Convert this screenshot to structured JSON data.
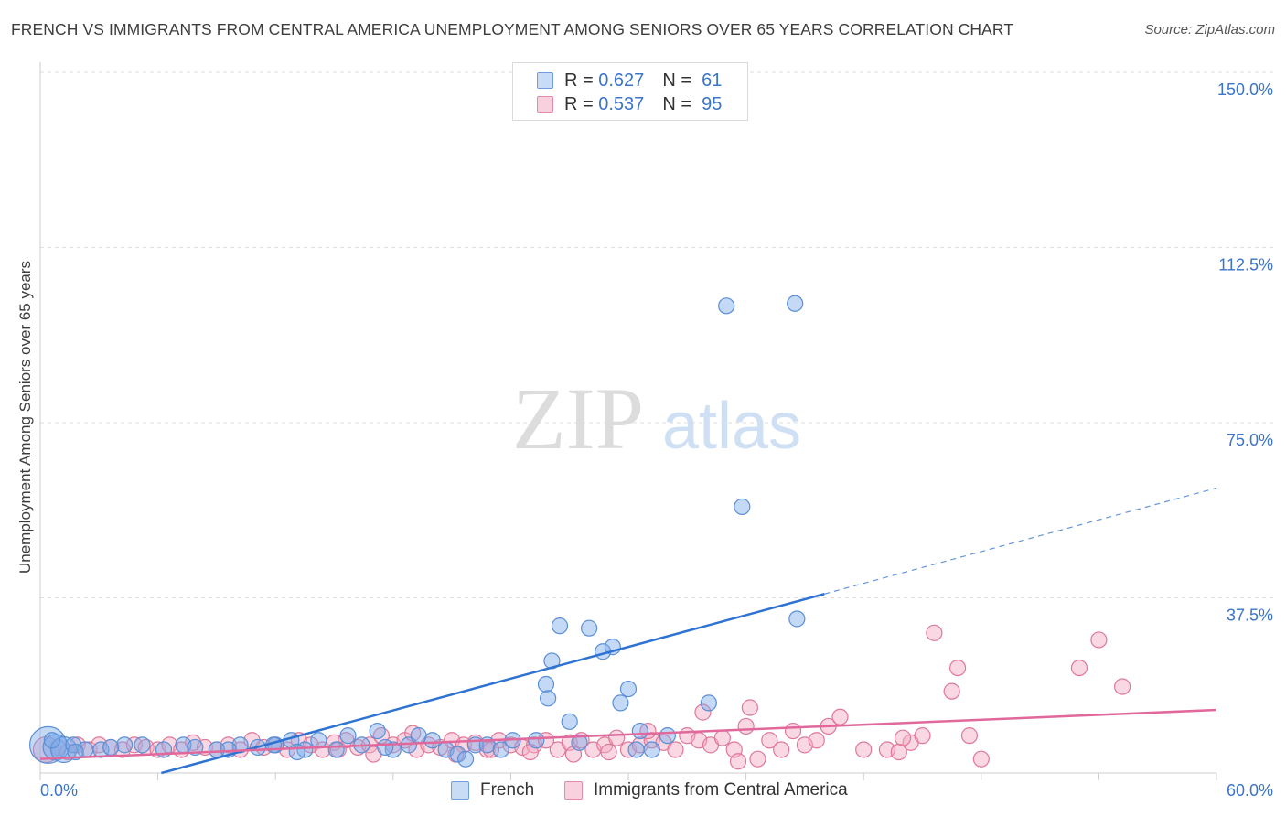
{
  "title": "FRENCH VS IMMIGRANTS FROM CENTRAL AMERICA UNEMPLOYMENT AMONG SENIORS OVER 65 YEARS CORRELATION CHART",
  "source": "Source: ZipAtlas.com",
  "watermark": {
    "zip": "ZIP",
    "atlas": "atlas"
  },
  "legend": {
    "r_label": "R =",
    "n_label": "N =",
    "rows": [
      {
        "r": "0.627",
        "n": "61",
        "color": "#a9c8f2",
        "border": "#5b8fd6"
      },
      {
        "r": "0.537",
        "n": "95",
        "color": "#f7bfd0",
        "border": "#e07898"
      }
    ]
  },
  "chart_data": {
    "type": "scatter",
    "title": "FRENCH VS IMMIGRANTS FROM CENTRAL AMERICA UNEMPLOYMENT AMONG SENIORS OVER 65 YEARS CORRELATION CHART",
    "xlabel": "",
    "ylabel": "Unemployment Among Seniors over 65 years",
    "xlim": [
      0,
      60
    ],
    "ylim": [
      0,
      150
    ],
    "x_tick_labels": [
      "0.0%",
      "60.0%"
    ],
    "y_ticks": [
      37.5,
      75,
      112.5,
      150
    ],
    "y_tick_labels": [
      "37.5%",
      "75.0%",
      "112.5%",
      "150.0%"
    ],
    "grid": "horizontal dashed",
    "legend_position": "top-center",
    "series": [
      {
        "name": "French",
        "color": "#7aaae8",
        "stroke": "#5b8fd6",
        "trend": {
          "x0": 0,
          "y0": -7,
          "x1": 60,
          "y1": 61,
          "solid_until": 40
        },
        "points": [
          [
            0.4,
            6,
            3
          ],
          [
            0.8,
            5.5,
            2
          ],
          [
            1.2,
            5,
            2
          ],
          [
            1.7,
            6,
            1
          ],
          [
            2.3,
            5,
            1
          ],
          [
            3.1,
            5,
            1
          ],
          [
            4.3,
            6,
            1
          ],
          [
            5.2,
            6,
            1
          ],
          [
            6.3,
            5,
            1
          ],
          [
            7.3,
            6,
            1
          ],
          [
            7.9,
            5.5,
            1
          ],
          [
            9.0,
            5,
            1
          ],
          [
            10.2,
            6,
            1
          ],
          [
            11.1,
            5.5,
            1
          ],
          [
            12.0,
            6,
            1
          ],
          [
            12.8,
            7,
            1
          ],
          [
            13.5,
            5,
            1
          ],
          [
            14.2,
            7,
            1
          ],
          [
            15.1,
            5,
            1
          ],
          [
            15.7,
            8,
            1
          ],
          [
            16.4,
            6,
            1
          ],
          [
            17.2,
            9,
            1
          ],
          [
            18.0,
            5,
            1
          ],
          [
            18.8,
            6,
            1
          ],
          [
            19.3,
            8,
            1
          ],
          [
            20.0,
            7,
            1
          ],
          [
            20.7,
            5,
            1
          ],
          [
            21.3,
            4,
            1
          ],
          [
            22.2,
            6,
            1
          ],
          [
            22.8,
            6,
            1
          ],
          [
            23.5,
            5,
            1
          ],
          [
            24.1,
            7,
            1
          ],
          [
            25.3,
            7,
            1
          ],
          [
            25.8,
            19,
            1
          ],
          [
            25.9,
            16,
            1
          ],
          [
            26.1,
            24,
            1
          ],
          [
            26.5,
            31.5,
            1
          ],
          [
            27.0,
            11,
            1
          ],
          [
            27.5,
            6.5,
            1
          ],
          [
            28.0,
            31,
            1
          ],
          [
            28.7,
            26,
            1
          ],
          [
            29.2,
            27,
            1
          ],
          [
            29.6,
            15,
            1
          ],
          [
            30.0,
            18,
            1
          ],
          [
            30.4,
            5,
            1
          ],
          [
            30.6,
            9,
            1
          ],
          [
            31.2,
            5,
            1
          ],
          [
            32.0,
            8,
            1
          ],
          [
            34.1,
            15,
            1
          ],
          [
            35.0,
            100,
            1
          ],
          [
            35.8,
            57,
            1
          ],
          [
            38.5,
            100.5,
            1
          ],
          [
            38.6,
            33,
            1
          ],
          [
            1.8,
            4.5,
            1
          ],
          [
            3.6,
            5.5,
            1
          ],
          [
            9.6,
            5,
            1
          ],
          [
            11.9,
            6,
            1
          ],
          [
            13.1,
            4.5,
            1
          ],
          [
            17.6,
            5.5,
            1
          ],
          [
            21.7,
            3,
            1
          ],
          [
            0.6,
            7,
            1
          ]
        ]
      },
      {
        "name": "Immigrants from Central America",
        "color": "#f4a9c0",
        "stroke": "#e07898",
        "trend": {
          "x0": 0,
          "y0": 3,
          "x1": 60,
          "y1": 13.5
        },
        "points": [
          [
            0.3,
            5,
            2
          ],
          [
            0.9,
            5.5,
            1
          ],
          [
            1.4,
            4.5,
            1
          ],
          [
            1.9,
            6,
            1
          ],
          [
            2.5,
            5,
            1
          ],
          [
            3.0,
            6,
            1
          ],
          [
            3.6,
            5.5,
            1
          ],
          [
            4.2,
            5,
            1
          ],
          [
            4.8,
            6,
            1
          ],
          [
            5.4,
            5.5,
            1
          ],
          [
            6.0,
            5,
            1
          ],
          [
            6.6,
            6,
            1
          ],
          [
            7.2,
            5,
            1
          ],
          [
            7.8,
            6.5,
            1
          ],
          [
            8.4,
            5.5,
            1
          ],
          [
            9.0,
            5,
            1
          ],
          [
            9.6,
            6,
            1
          ],
          [
            10.2,
            5,
            1
          ],
          [
            10.8,
            7,
            1
          ],
          [
            11.4,
            5.5,
            1
          ],
          [
            12.0,
            6,
            1
          ],
          [
            12.6,
            5,
            1
          ],
          [
            13.2,
            7,
            1
          ],
          [
            13.8,
            6,
            1
          ],
          [
            14.4,
            5,
            1
          ],
          [
            15.0,
            6.5,
            1
          ],
          [
            15.6,
            7,
            1
          ],
          [
            16.2,
            5.5,
            1
          ],
          [
            16.8,
            6,
            1
          ],
          [
            17.4,
            8,
            1
          ],
          [
            18.0,
            6,
            1
          ],
          [
            18.6,
            7,
            1
          ],
          [
            19.2,
            5,
            1
          ],
          [
            19.8,
            6,
            1
          ],
          [
            20.4,
            5.5,
            1
          ],
          [
            21.0,
            7,
            1
          ],
          [
            21.6,
            6,
            1
          ],
          [
            22.2,
            6.5,
            1
          ],
          [
            22.8,
            5,
            1
          ],
          [
            23.4,
            7,
            1
          ],
          [
            24.0,
            6,
            1
          ],
          [
            24.6,
            5.5,
            1
          ],
          [
            25.2,
            6,
            1
          ],
          [
            25.8,
            7,
            1
          ],
          [
            26.4,
            5,
            1
          ],
          [
            27.0,
            6.5,
            1
          ],
          [
            27.6,
            7,
            1
          ],
          [
            28.2,
            5,
            1
          ],
          [
            28.8,
            6,
            1
          ],
          [
            29.4,
            7.5,
            1
          ],
          [
            30.0,
            5,
            1
          ],
          [
            30.6,
            6,
            1
          ],
          [
            31.2,
            7,
            1
          ],
          [
            31.8,
            6.5,
            1
          ],
          [
            32.4,
            5,
            1
          ],
          [
            33.0,
            8,
            1
          ],
          [
            33.6,
            7,
            1
          ],
          [
            34.2,
            6,
            1
          ],
          [
            34.8,
            7.5,
            1
          ],
          [
            35.4,
            5,
            1
          ],
          [
            36.0,
            10,
            1
          ],
          [
            36.6,
            3,
            1
          ],
          [
            37.2,
            7,
            1
          ],
          [
            37.8,
            5,
            1
          ],
          [
            38.4,
            9,
            1
          ],
          [
            39.0,
            6,
            1
          ],
          [
            39.6,
            7,
            1
          ],
          [
            40.2,
            10,
            1
          ],
          [
            40.8,
            12,
            1
          ],
          [
            42.0,
            5,
            1
          ],
          [
            43.2,
            5,
            1
          ],
          [
            44.4,
            6.5,
            1
          ],
          [
            45.6,
            30,
            1
          ],
          [
            46.5,
            17.5,
            1
          ],
          [
            46.8,
            22.5,
            1
          ],
          [
            47.4,
            8,
            1
          ],
          [
            48.0,
            3,
            1
          ],
          [
            53.0,
            22.5,
            1
          ],
          [
            54.0,
            28.5,
            1
          ],
          [
            55.2,
            18.5,
            1
          ],
          [
            36.2,
            14,
            1
          ],
          [
            35.6,
            2.5,
            1
          ],
          [
            33.8,
            13,
            1
          ],
          [
            31.0,
            9,
            1
          ],
          [
            29.0,
            4.5,
            1
          ],
          [
            27.2,
            4,
            1
          ],
          [
            25.0,
            4.5,
            1
          ],
          [
            23.0,
            5,
            1
          ],
          [
            21.2,
            4,
            1
          ],
          [
            19.0,
            8.5,
            1
          ],
          [
            17.0,
            4,
            1
          ],
          [
            15.2,
            5,
            1
          ],
          [
            44.0,
            7.5,
            1
          ],
          [
            45.0,
            8,
            1
          ],
          [
            43.8,
            4.5,
            1
          ]
        ]
      }
    ]
  }
}
